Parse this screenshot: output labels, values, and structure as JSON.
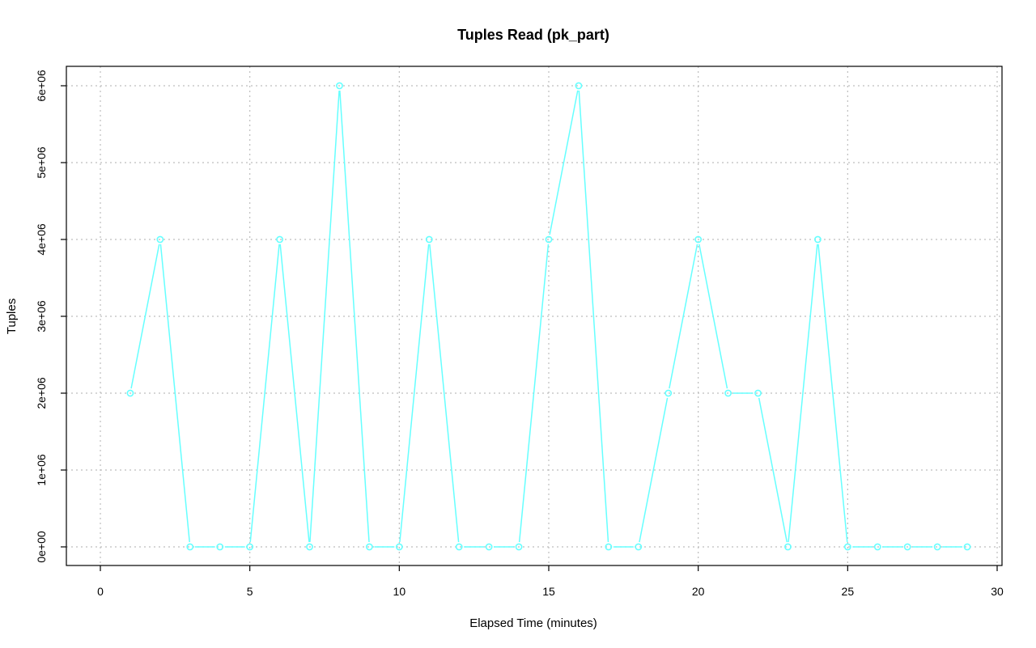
{
  "chart_data": {
    "type": "line",
    "title": "Tuples Read (pk_part)",
    "xlabel": "Elapsed Time (minutes)",
    "ylabel": "Tuples",
    "xlim": [
      0,
      30
    ],
    "ylim": [
      0,
      6000000
    ],
    "xticks": [
      0,
      5,
      10,
      15,
      20,
      25,
      30
    ],
    "yticks": [
      0,
      1000000,
      2000000,
      3000000,
      4000000,
      5000000,
      6000000
    ],
    "ytick_labels": [
      "0e+00",
      "1e+06",
      "2e+06",
      "3e+06",
      "4e+06",
      "5e+06",
      "6e+06"
    ],
    "grid": true,
    "color": "#66ffff",
    "series": [
      {
        "x": [
          1,
          2,
          3,
          4,
          5,
          6,
          7,
          8,
          9,
          10,
          11,
          12,
          13,
          14,
          15,
          16,
          17,
          18,
          19,
          20,
          21,
          22,
          23,
          24,
          25,
          26,
          27,
          28,
          29
        ],
        "values": [
          2000000,
          4000000,
          0,
          0,
          0,
          4000000,
          0,
          6000000,
          0,
          0,
          4000000,
          0,
          0,
          0,
          4000000,
          6000000,
          0,
          0,
          2000000,
          4000000,
          2000000,
          2000000,
          0,
          4000000,
          0,
          0,
          0,
          0,
          0
        ]
      }
    ]
  }
}
